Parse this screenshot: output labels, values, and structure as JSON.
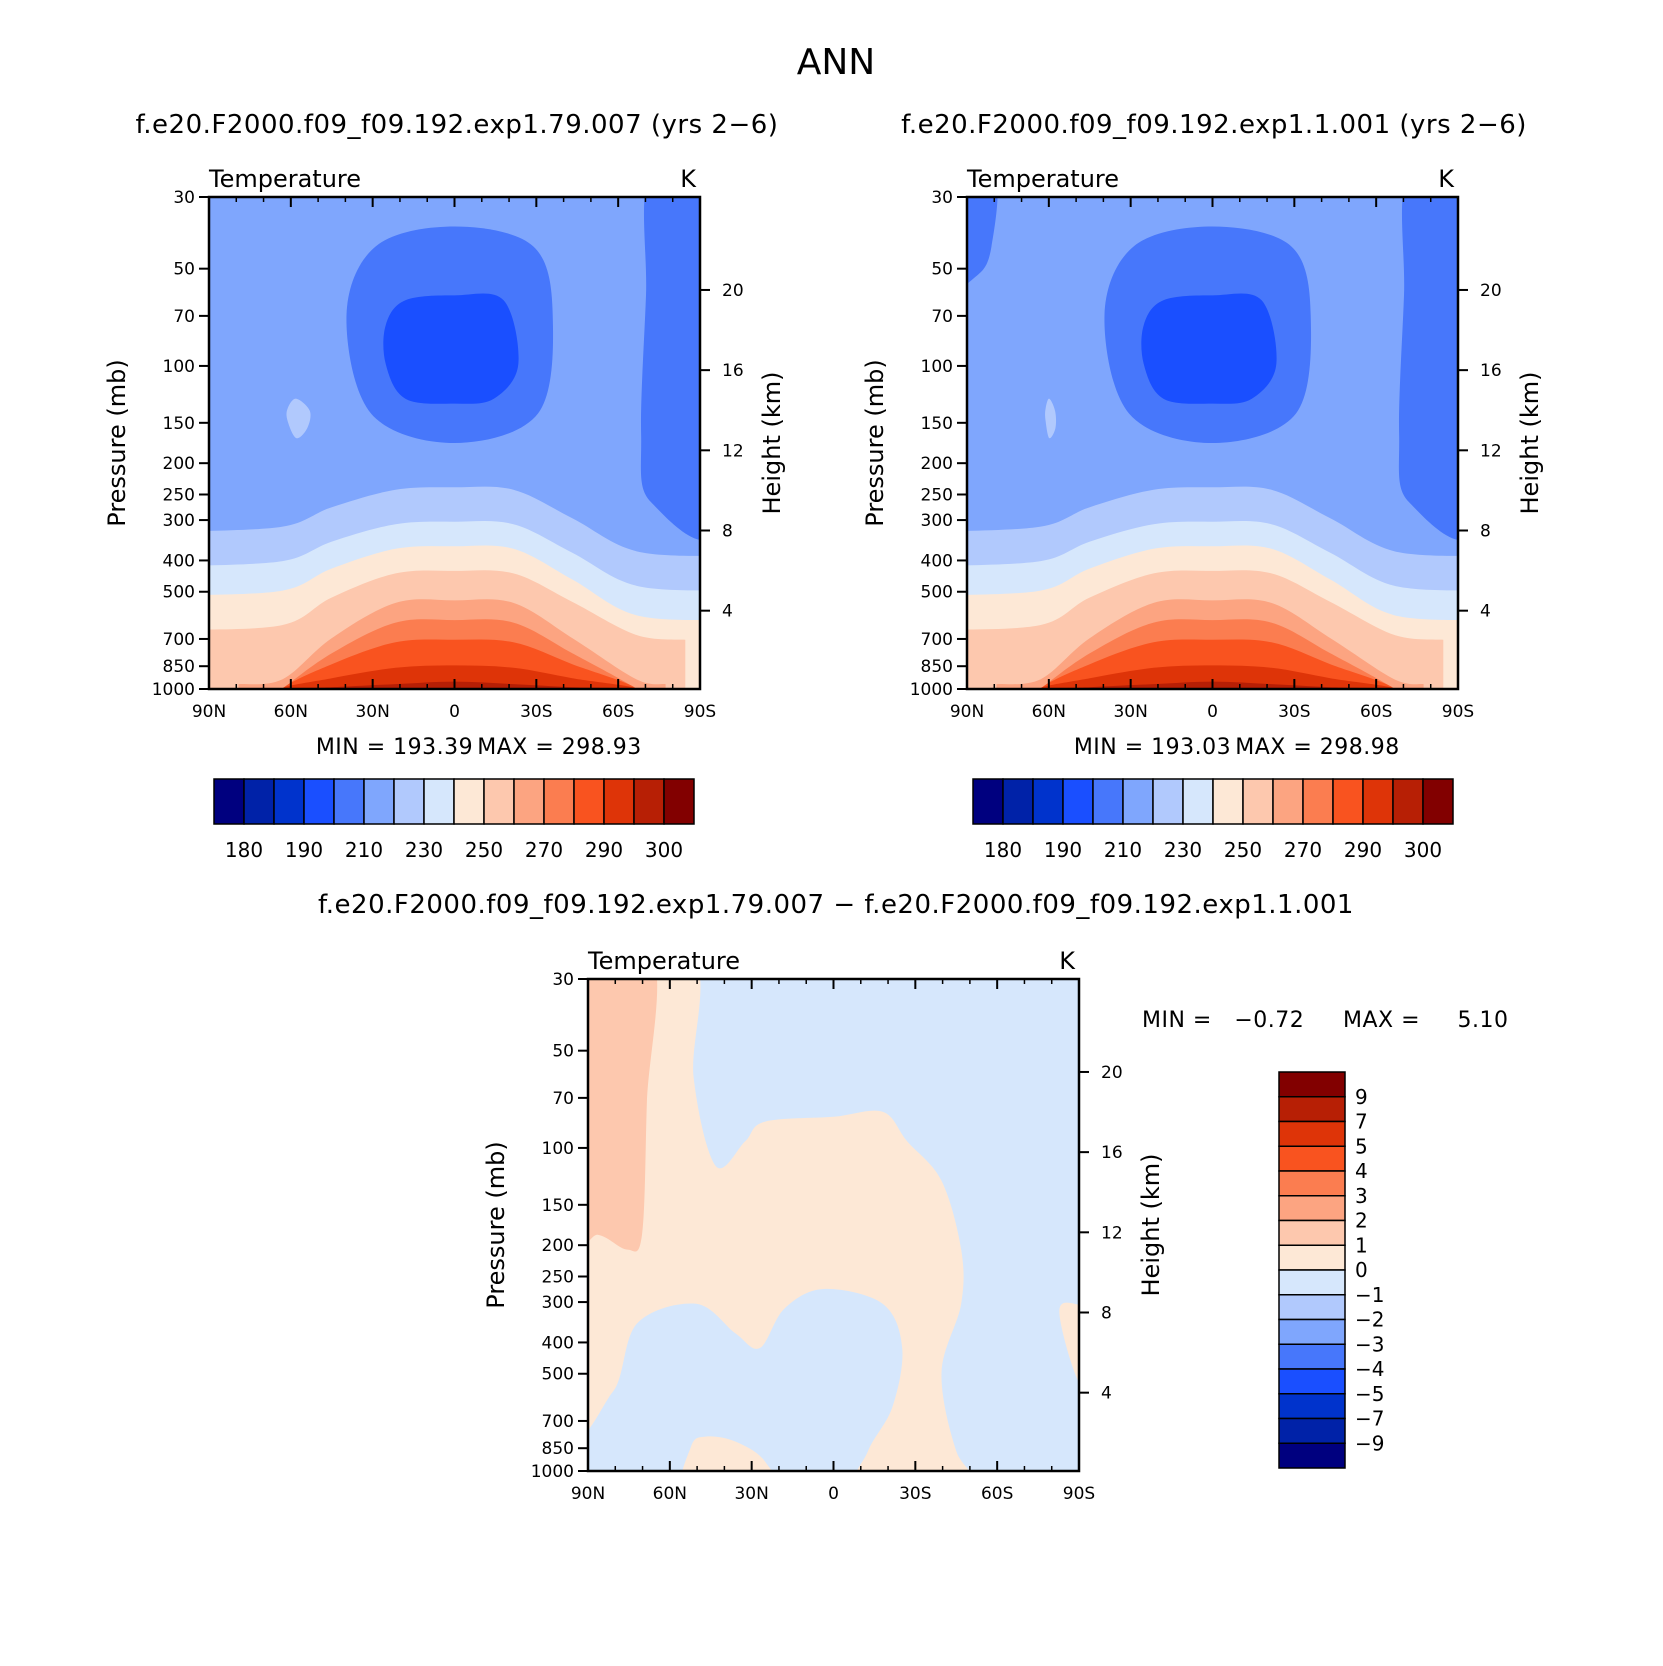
{
  "page": {
    "title": "ANN"
  },
  "chart_data": [
    {
      "type": "heatmap",
      "subtitle": "f.e20.F2000.f09_f09.192.exp1.79.007 (yrs 2-6)",
      "title": "Temperature",
      "units": "K",
      "xlabel": "",
      "ylabel": "Pressure (mb)",
      "y2label": "Height (km)",
      "x_ticks": [
        "90N",
        "60N",
        "30N",
        "0",
        "30S",
        "60S",
        "90S"
      ],
      "y_ticks": [
        30,
        50,
        70,
        100,
        150,
        200,
        250,
        300,
        400,
        500,
        700,
        850,
        1000
      ],
      "y2_ticks": [
        4,
        8,
        12,
        16,
        20
      ],
      "min_label": "MIN = 193.39",
      "max_label": "MAX = 298.93",
      "min": 193.39,
      "max": 298.93,
      "colorbar_labels": [
        "180",
        "190",
        "210",
        "230",
        "250",
        "270",
        "290",
        "300"
      ],
      "colorbar_colors": [
        "#00007f",
        "#0022a8",
        "#0033cc",
        "#1a4fff",
        "#4777fb",
        "#7fa6fd",
        "#b1c9fd",
        "#d6e7fc",
        "#fde8d6",
        "#fdc8ae",
        "#fca481",
        "#fb7d50",
        "#f9531f",
        "#de3408",
        "#b71f05",
        "#820000"
      ]
    },
    {
      "type": "heatmap",
      "subtitle": "f.e20.F2000.f09_f09.192.exp1.1.001 (yrs 2-6)",
      "title": "Temperature",
      "units": "K",
      "xlabel": "",
      "ylabel": "Pressure (mb)",
      "y2label": "Height (km)",
      "x_ticks": [
        "90N",
        "60N",
        "30N",
        "0",
        "30S",
        "60S",
        "90S"
      ],
      "y_ticks": [
        30,
        50,
        70,
        100,
        150,
        200,
        250,
        300,
        400,
        500,
        700,
        850,
        1000
      ],
      "y2_ticks": [
        4,
        8,
        12,
        16,
        20
      ],
      "min_label": "MIN = 193.03",
      "max_label": "MAX = 298.98",
      "min": 193.03,
      "max": 298.98,
      "colorbar_labels": [
        "180",
        "190",
        "210",
        "230",
        "250",
        "270",
        "290",
        "300"
      ],
      "colorbar_colors": [
        "#00007f",
        "#0022a8",
        "#0033cc",
        "#1a4fff",
        "#4777fb",
        "#7fa6fd",
        "#b1c9fd",
        "#d6e7fc",
        "#fde8d6",
        "#fdc8ae",
        "#fca481",
        "#fb7d50",
        "#f9531f",
        "#de3408",
        "#b71f05",
        "#820000"
      ]
    },
    {
      "type": "heatmap",
      "subtitle": "f.e20.F2000.f09_f09.192.exp1.79.007 - f.e20.F2000.f09_f09.192.exp1.1.001",
      "title": "Temperature",
      "units": "K",
      "xlabel": "",
      "ylabel": "Pressure (mb)",
      "y2label": "Height (km)",
      "x_ticks": [
        "90N",
        "60N",
        "30N",
        "0",
        "30S",
        "60S",
        "90S"
      ],
      "y_ticks": [
        30,
        50,
        70,
        100,
        150,
        200,
        250,
        300,
        400,
        500,
        700,
        850,
        1000
      ],
      "y2_ticks": [
        4,
        8,
        12,
        16,
        20
      ],
      "min_label": "MIN =   -0.72",
      "max_label": "MAX =     5.10",
      "min": -0.72,
      "max": 5.1,
      "colorbar_labels": [
        "9",
        "7",
        "5",
        "4",
        "3",
        "2",
        "1",
        "0",
        "-1",
        "-2",
        "-3",
        "-4",
        "-5",
        "-7",
        "-9"
      ],
      "colorbar_colors": [
        "#820000",
        "#b71f05",
        "#de3408",
        "#f9531f",
        "#fb7d50",
        "#fca481",
        "#fdc8ae",
        "#fde8d6",
        "#d6e7fc",
        "#b1c9fd",
        "#7fa6fd",
        "#4777fb",
        "#1a4fff",
        "#0033cc",
        "#0022a8",
        "#00007f"
      ]
    }
  ]
}
